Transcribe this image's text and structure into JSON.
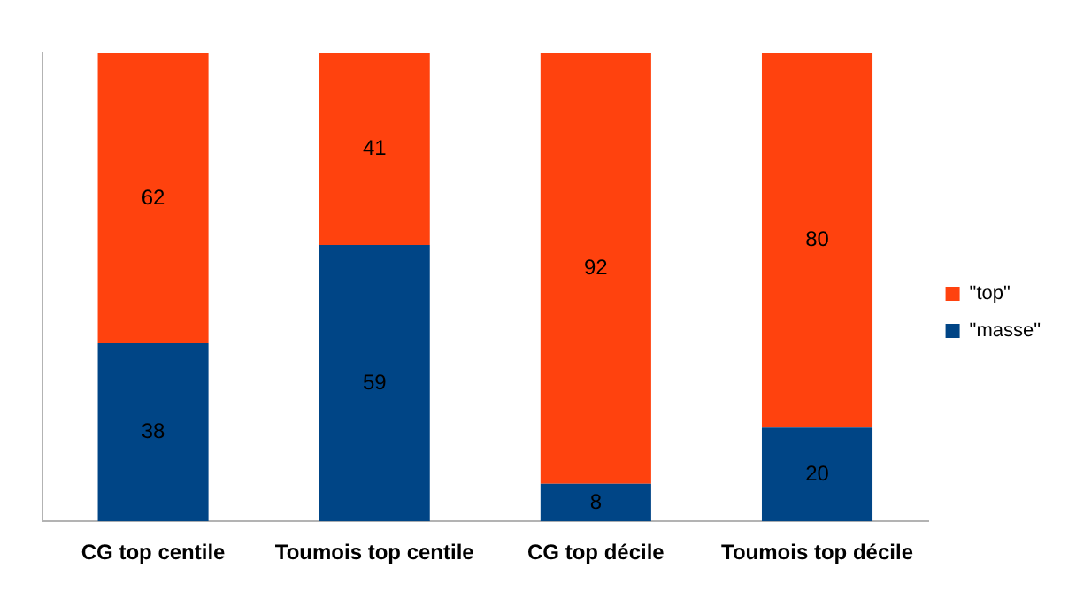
{
  "chart_data": {
    "type": "bar",
    "stacked": true,
    "categories": [
      "CG top centile",
      "Toumois top centile",
      "CG top décile",
      "Toumois top décile"
    ],
    "series": [
      {
        "name": "\"masse\"",
        "color": "#004586",
        "values": [
          38,
          59,
          8,
          20
        ]
      },
      {
        "name": "\"top\"",
        "color": "#ff420e",
        "values": [
          62,
          41,
          92,
          80
        ]
      }
    ],
    "data_labels": true,
    "legend": "right",
    "grid": false
  }
}
